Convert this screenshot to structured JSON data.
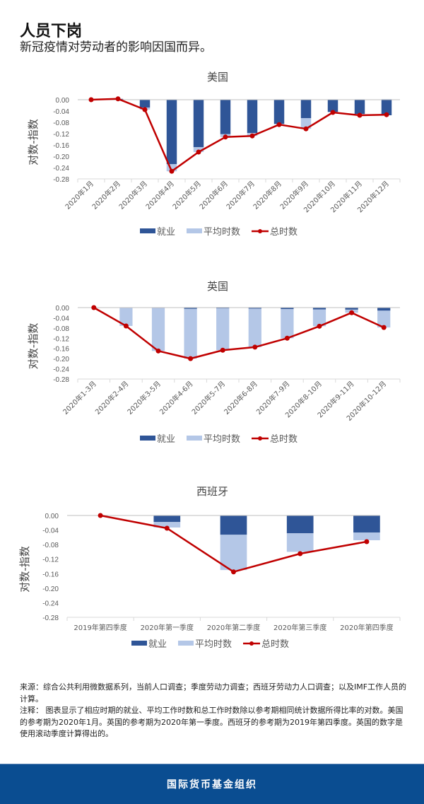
{
  "header": {
    "title": "人员下岗",
    "subtitle": "新冠疫情对劳动者的影响因国而异。"
  },
  "colors": {
    "employment": "#2f5597",
    "avg_hours": "#b4c7e7",
    "total_hours": "#c00000",
    "footer_bg": "#0a4d91"
  },
  "legend": {
    "employment": "就业",
    "avg_hours": "平均时数",
    "total_hours": "总时数"
  },
  "chart_data": [
    {
      "type": "bar+line",
      "title": "美国",
      "ylabel": "对数-指数",
      "xlabel": "",
      "ylim": [
        -0.28,
        0.0
      ],
      "yticks": [
        "0.00",
        "-0.04",
        "-0.08",
        "-0.12",
        "-0.16",
        "-0.20",
        "-0.24",
        "-0.28"
      ],
      "categories": [
        "2020年1月",
        "2020年2月",
        "2020年3月",
        "2020年4月",
        "2020年5月",
        "2020年6月",
        "2020年7月",
        "2020年8月",
        "2020年9月",
        "2020年10月",
        "2020年11月",
        "2020年12月"
      ],
      "series": [
        {
          "name": "就业",
          "type": "bar",
          "values": [
            0.0,
            0.003,
            -0.028,
            -0.228,
            -0.168,
            -0.122,
            -0.118,
            -0.085,
            -0.065,
            -0.043,
            -0.05,
            -0.055
          ]
        },
        {
          "name": "平均时数",
          "type": "bar",
          "values": [
            0.0,
            0.0,
            -0.007,
            -0.025,
            -0.017,
            -0.01,
            -0.01,
            -0.003,
            -0.038,
            -0.002,
            -0.005,
            0.002
          ]
        },
        {
          "name": "总时数",
          "type": "line",
          "values": [
            0.0,
            0.003,
            -0.035,
            -0.253,
            -0.185,
            -0.132,
            -0.128,
            -0.088,
            -0.103,
            -0.045,
            -0.055,
            -0.053
          ]
        }
      ],
      "legend_position": "bottom",
      "grid": false
    },
    {
      "type": "bar+line",
      "title": "英国",
      "ylabel": "对数-指数",
      "xlabel": "",
      "ylim": [
        -0.28,
        0.0
      ],
      "yticks": [
        "0.00",
        "-0.04",
        "-0.08",
        "-0.12",
        "-0.16",
        "-0.20",
        "-0.24",
        "-0.28"
      ],
      "categories": [
        "2020年1-3月",
        "2020年2-4月",
        "2020年3-5月",
        "2020年4-6月",
        "2020年5-7月",
        "2020年6-8月",
        "2020年7-9月",
        "2020年8-10月",
        "2020年9-11月",
        "2020年10-12月"
      ],
      "series": [
        {
          "name": "就业",
          "type": "bar",
          "values": [
            0.0,
            0.0,
            -0.002,
            -0.005,
            -0.003,
            -0.004,
            -0.006,
            -0.007,
            -0.008,
            -0.012
          ]
        },
        {
          "name": "平均时数",
          "type": "bar",
          "values": [
            0.0,
            -0.072,
            -0.168,
            -0.195,
            -0.164,
            -0.151,
            -0.114,
            -0.066,
            -0.012,
            -0.066
          ]
        },
        {
          "name": "总时数",
          "type": "line",
          "values": [
            0.0,
            -0.072,
            -0.17,
            -0.2,
            -0.167,
            -0.155,
            -0.12,
            -0.073,
            -0.02,
            -0.078
          ]
        }
      ],
      "legend_position": "bottom",
      "grid": false
    },
    {
      "type": "bar+line",
      "title": "西班牙",
      "ylabel": "对数-指数",
      "xlabel": "",
      "ylim": [
        -0.28,
        0.0
      ],
      "yticks": [
        "0.00",
        "-0.04",
        "-0.08",
        "-0.12",
        "-0.16",
        "-0.20",
        "-0.24",
        "-0.28"
      ],
      "categories": [
        "2019年第四季度",
        "2020年第一季度",
        "2020年第二季度",
        "2020年第三季度",
        "2020年第四季度"
      ],
      "series": [
        {
          "name": "就业",
          "type": "bar",
          "values": [
            0.0,
            -0.018,
            -0.053,
            -0.049,
            -0.047
          ]
        },
        {
          "name": "平均时数",
          "type": "bar",
          "values": [
            0.0,
            -0.015,
            -0.097,
            -0.051,
            -0.021
          ]
        },
        {
          "name": "总时数",
          "type": "line",
          "values": [
            0.0,
            -0.035,
            -0.155,
            -0.105,
            -0.072
          ]
        }
      ],
      "legend_position": "bottom",
      "grid": false
    }
  ],
  "notes": {
    "source": "来源：综合公共利用微数据系列，当前人口调查；季度劳动力调查；西班牙劳动力人口调查；以及IMF工作人员的计算。",
    "note": "注释： 图表显示了相应时期的就业、平均工作时数和总工作时数除以参考期相同统计数据所得比率的对数。美国的参考期为2020年1月。英国的参考期为2020年第一季度。西班牙的参考期为2019年第四季度。英国的数字是使用滚动季度计算得出的。"
  },
  "footer": {
    "org": "国际货币基金组织"
  }
}
